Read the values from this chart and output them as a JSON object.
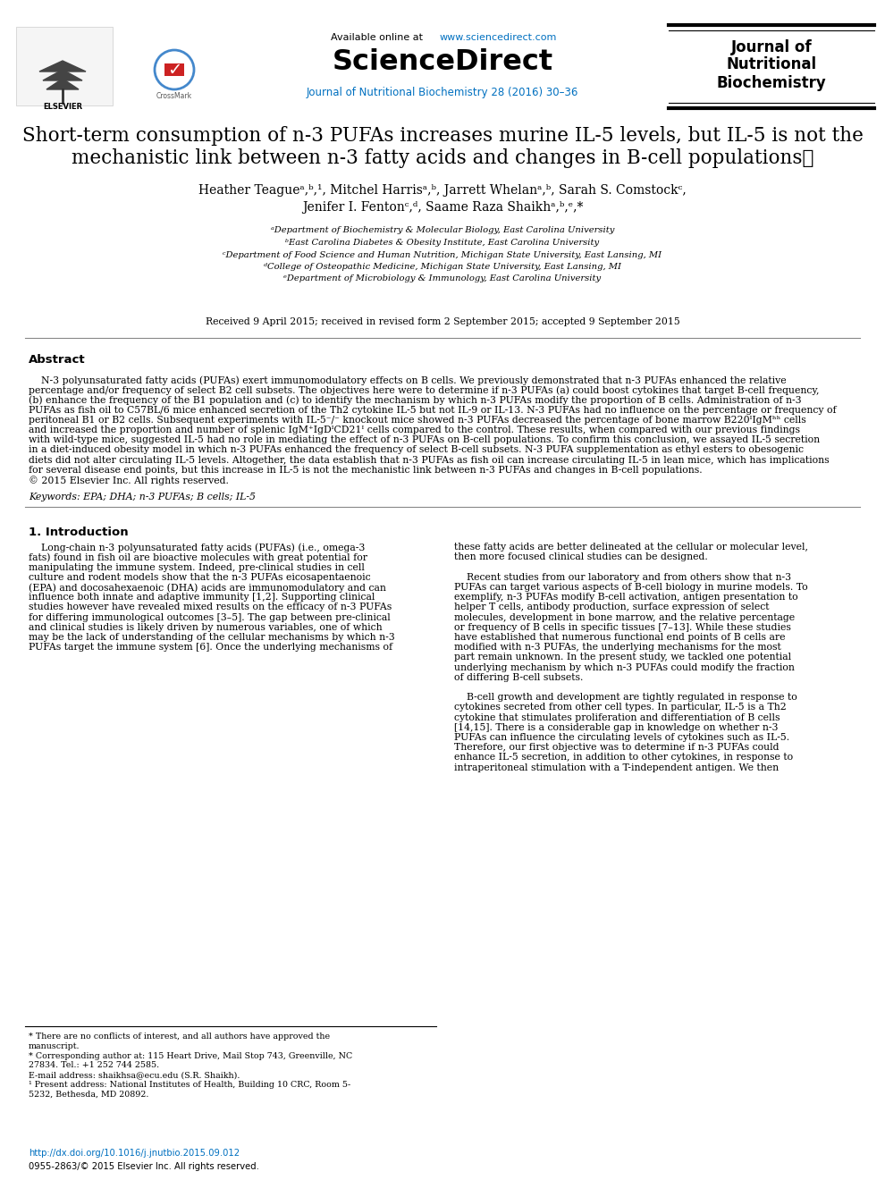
{
  "bg_color": "#ffffff",
  "header_available": "Available online at ",
  "header_url": "www.sciencedirect.com",
  "header_sciencedirect": "ScienceDirect",
  "header_journal_line": "Journal of Nutritional Biochemistry 28 (2016) 30–36",
  "header_journal_name_lines": [
    "Journal of",
    "Nutritional",
    "Biochemistry"
  ],
  "header_elsevier_text": "ELSEVIER",
  "title_line1": "Short-term consumption of n-3 PUFAs increases murine IL-5 levels, but IL-5 is not the",
  "title_line2": "mechanistic link between n-3 fatty acids and changes in B-cell populations☆",
  "authors_line1": "Heather Teagueᵃ,ᵇ,¹, Mitchel Harrisᵃ,ᵇ, Jarrett Whelanᵃ,ᵇ, Sarah S. Comstockᶜ,",
  "authors_line2": "Jenifer I. Fentonᶜ,ᵈ, Saame Raza Shaikhᵃ,ᵇ,ᵉ,*",
  "affiliations": [
    "ᵃDepartment of Biochemistry & Molecular Biology, East Carolina University",
    "ᵇEast Carolina Diabetes & Obesity Institute, East Carolina University",
    "ᶜDepartment of Food Science and Human Nutrition, Michigan State University, East Lansing, MI",
    "ᵈCollege of Osteopathic Medicine, Michigan State University, East Lansing, MI",
    "ᵉDepartment of Microbiology & Immunology, East Carolina University"
  ],
  "received": "Received 9 April 2015; received in revised form 2 September 2015; accepted 9 September 2015",
  "abstract_title": "Abstract",
  "abstract_lines": [
    "    N-3 polyunsaturated fatty acids (PUFAs) exert immunomodulatory effects on B cells. We previously demonstrated that n-3 PUFAs enhanced the relative",
    "percentage and/or frequency of select B2 cell subsets. The objectives here were to determine if n-3 PUFAs (a) could boost cytokines that target B-cell frequency,",
    "(b) enhance the frequency of the B1 population and (c) to identify the mechanism by which n-3 PUFAs modify the proportion of B cells. Administration of n-3",
    "PUFAs as fish oil to C57BL/6 mice enhanced secretion of the Th2 cytokine IL-5 but not IL-9 or IL-13. N-3 PUFAs had no influence on the percentage or frequency of",
    "peritoneal B1 or B2 cells. Subsequent experiments with IL-5⁻/⁻ knockout mice showed n-3 PUFAs decreased the percentage of bone marrow B220ᴵIgMʰʰ cells",
    "and increased the proportion and number of splenic IgM⁺IgDᴵCD21ᴵ cells compared to the control. These results, when compared with our previous findings",
    "with wild-type mice, suggested IL-5 had no role in mediating the effect of n-3 PUFAs on B-cell populations. To confirm this conclusion, we assayed IL-5 secretion",
    "in a diet-induced obesity model in which n-3 PUFAs enhanced the frequency of select B-cell subsets. N-3 PUFA supplementation as ethyl esters to obesogenic",
    "diets did not alter circulating IL-5 levels. Altogether, the data establish that n-3 PUFAs as fish oil can increase circulating IL-5 in lean mice, which has implications",
    "for several disease end points, but this increase in IL-5 is not the mechanistic link between n-3 PUFAs and changes in B-cell populations.",
    "© 2015 Elsevier Inc. All rights reserved."
  ],
  "keywords": "Keywords: EPA; DHA; n-3 PUFAs; B cells; IL-5",
  "intro_title": "1. Introduction",
  "intro_col1_lines": [
    "    Long-chain n-3 polyunsaturated fatty acids (PUFAs) (i.e., omega-3",
    "fats) found in fish oil are bioactive molecules with great potential for",
    "manipulating the immune system. Indeed, pre-clinical studies in cell",
    "culture and rodent models show that the n-3 PUFAs eicosapentaenoic",
    "(EPA) and docosahexaenoic (DHA) acids are immunomodulatory and can",
    "influence both innate and adaptive immunity [1,2]. Supporting clinical",
    "studies however have revealed mixed results on the efficacy of n-3 PUFAs",
    "for differing immunological outcomes [3–5]. The gap between pre-clinical",
    "and clinical studies is likely driven by numerous variables, one of which",
    "may be the lack of understanding of the cellular mechanisms by which n-3",
    "PUFAs target the immune system [6]. Once the underlying mechanisms of"
  ],
  "intro_col2_lines": [
    "these fatty acids are better delineated at the cellular or molecular level,",
    "then more focused clinical studies can be designed.",
    "",
    "    Recent studies from our laboratory and from others show that n-3",
    "PUFAs can target various aspects of B-cell biology in murine models. To",
    "exemplify, n-3 PUFAs modify B-cell activation, antigen presentation to",
    "helper T cells, antibody production, surface expression of select",
    "molecules, development in bone marrow, and the relative percentage",
    "or frequency of B cells in specific tissues [7–13]. While these studies",
    "have established that numerous functional end points of B cells are",
    "modified with n-3 PUFAs, the underlying mechanisms for the most",
    "part remain unknown. In the present study, we tackled one potential",
    "underlying mechanism by which n-3 PUFAs could modify the fraction",
    "of differing B-cell subsets.",
    "",
    "    B-cell growth and development are tightly regulated in response to",
    "cytokines secreted from other cell types. In particular, IL-5 is a Th2",
    "cytokine that stimulates proliferation and differentiation of B cells",
    "[14,15]. There is a considerable gap in knowledge on whether n-3",
    "PUFAs can influence the circulating levels of cytokines such as IL-5.",
    "Therefore, our first objective was to determine if n-3 PUFAs could",
    "enhance IL-5 secretion, in addition to other cytokines, in response to",
    "intraperitoneal stimulation with a T-independent antigen. We then"
  ],
  "footer_notes": [
    "* There are no conflicts of interest, and all authors have approved the",
    "manuscript.",
    "* Corresponding author at: 115 Heart Drive, Mail Stop 743, Greenville, NC",
    "27834. Tel.: +1 252 744 2585.",
    "E-mail address: shaikhsa@ecu.edu (S.R. Shaikh).",
    "¹ Present address: National Institutes of Health, Building 10 CRC, Room 5-",
    "5232, Bethesda, MD 20892."
  ],
  "footer_doi": "http://dx.doi.org/10.1016/j.jnutbio.2015.09.012",
  "footer_issn": "0955-2863/© 2015 Elsevier Inc. All rights reserved.",
  "url_color": "#0070C0",
  "journal_line_color": "#0070C0"
}
